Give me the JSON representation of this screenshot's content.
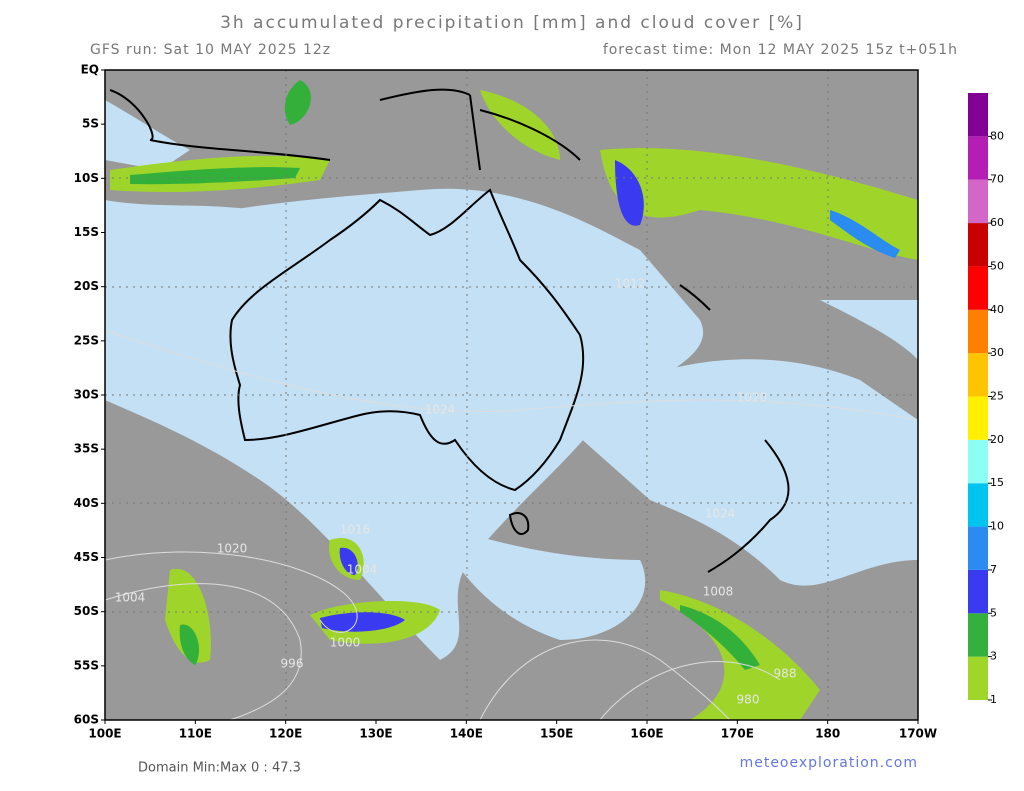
{
  "header": {
    "title": "3h accumulated precipitation [mm] and cloud cover [%]",
    "run": "GFS run: Sat 10 MAY 2025 12z",
    "forecast": "forecast time: Mon 12 MAY 2025 15z  t+051h"
  },
  "axes": {
    "lat_labels": [
      "EQ",
      "5S",
      "10S",
      "15S",
      "20S",
      "25S",
      "30S",
      "35S",
      "40S",
      "45S",
      "50S",
      "55S",
      "60S"
    ],
    "lon_labels": [
      "100E",
      "110E",
      "120E",
      "130E",
      "140E",
      "150E",
      "160E",
      "170E",
      "180",
      "170W"
    ]
  },
  "colorbar": {
    "levels": [
      1,
      3,
      5,
      7,
      10,
      15,
      20,
      25,
      30,
      40,
      50,
      60,
      70,
      80
    ],
    "colors": [
      "#a0d62a",
      "#34b03c",
      "#3a3af0",
      "#2a8cf0",
      "#00c4f0",
      "#8cfff4",
      "#fff000",
      "#ffc400",
      "#ff8000",
      "#ff0000",
      "#c80000",
      "#d466c8",
      "#b41eb4",
      "#820096"
    ]
  },
  "isobar_labels": [
    "1012",
    "1024",
    "1020",
    "1016",
    "1004",
    "1000",
    "996",
    "988",
    "980",
    "1008",
    "1004",
    "1024",
    "1020"
  ],
  "footer": {
    "minmax": "Domain Min:Max 0 : 47.3",
    "credit": "meteoexploration.com"
  }
}
